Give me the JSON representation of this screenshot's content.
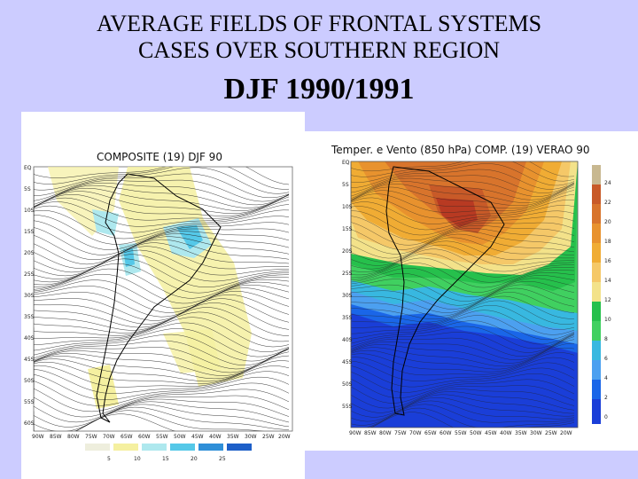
{
  "slide": {
    "title_line1": "AVERAGE FIELDS OF FRONTAL SYSTEMS",
    "title_line2": "CASES OVER  SOUTHERN REGION",
    "subtitle": "DJF 1990/1991"
  },
  "left_map": {
    "title": "COMPOSITE (19) DJF 90",
    "lat_labels": [
      "EQ",
      "5S",
      "10S",
      "15S",
      "20S",
      "25S",
      "30S",
      "35S",
      "40S",
      "45S",
      "50S",
      "55S",
      "60S"
    ],
    "lon_labels": [
      "90W",
      "85W",
      "80W",
      "75W",
      "70W",
      "65W",
      "60W",
      "55W",
      "50W",
      "45W",
      "40W",
      "35W",
      "30W",
      "25W",
      "20W"
    ],
    "colorbar": {
      "labels": [
        "5",
        "10",
        "15",
        "20",
        "25"
      ],
      "colors": [
        "#eeeedd",
        "#f5f0a0",
        "#aee8ee",
        "#55c8e8",
        "#2f8fd8"
      ]
    }
  },
  "right_map": {
    "title": "Temper. e Vento (850 hPa) COMP. (19) VERAO 90",
    "lat_labels": [
      "EQ",
      "5S",
      "10S",
      "15S",
      "20S",
      "25S",
      "30S",
      "35S",
      "40S",
      "45S",
      "50S",
      "55S"
    ],
    "lon_labels": [
      "90W",
      "85W",
      "80W",
      "75W",
      "70W",
      "65W",
      "60W",
      "55W",
      "50W",
      "45W",
      "40W",
      "35W",
      "30W",
      "25W",
      "20W"
    ],
    "colorbar": {
      "labels": [
        "24",
        "22",
        "20",
        "18",
        "16",
        "14",
        "12",
        "10",
        "8",
        "6",
        "4",
        "2",
        "0"
      ],
      "colors": [
        "#c8b890",
        "#c85a28",
        "#d8742c",
        "#e8922e",
        "#f0ac34",
        "#f5c868",
        "#f3e28a",
        "#26c04c",
        "#40d060",
        "#38b8e0",
        "#4ca0f0",
        "#1a66e8",
        "#1a3ed8"
      ]
    }
  }
}
